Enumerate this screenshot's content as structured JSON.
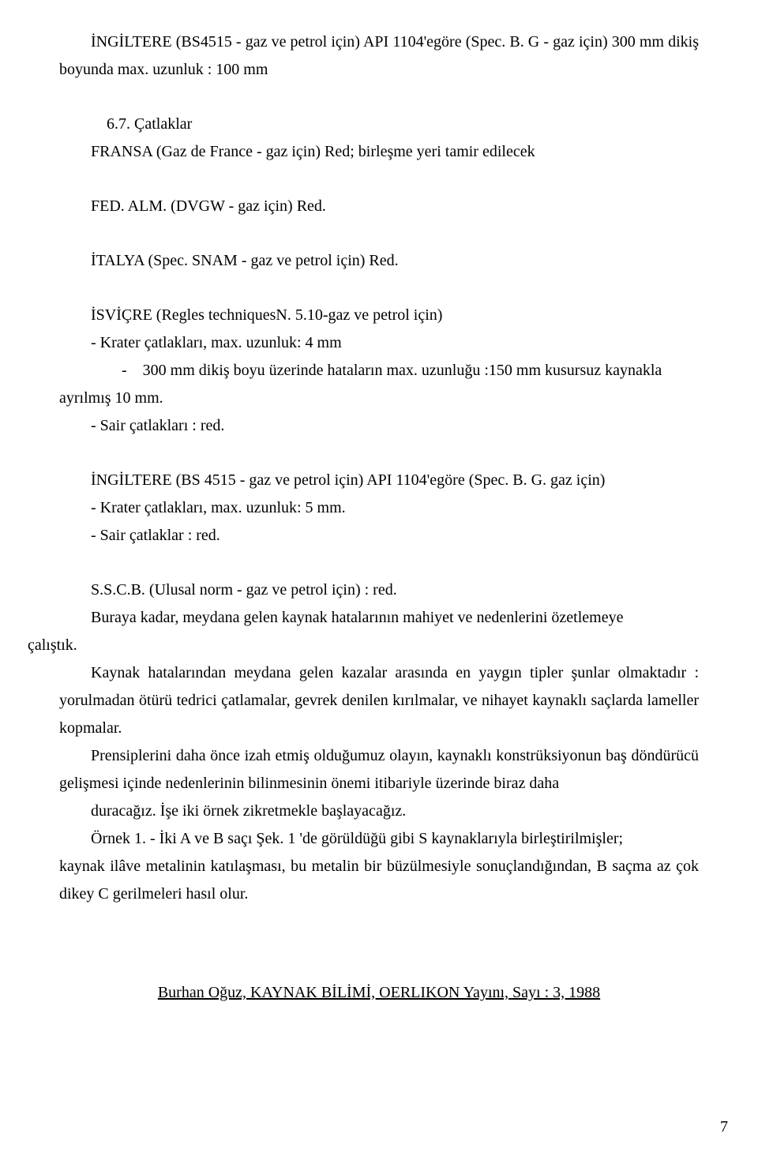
{
  "p1": "İNGİLTERE (BS4515 - gaz ve petrol için) API 1104'egöre (Spec. B. G - gaz için) 300 mm dikiş boyunda max. uzunluk : 100 mm",
  "p2": "6.7. Çatlaklar",
  "p3": "FRANSA (Gaz de France - gaz için) Red; birleşme   yeri   tamir edilecek",
  "p4": "FED. ALM. (DVGW - gaz için) Red.",
  "p5": "İTALYA     (Spec. SNAM - gaz ve petrol için) Red.",
  "p6": "İSVİÇRE     (Regles techniquesN. 5.10-gaz ve petrol için)",
  "p6a": "-  Krater  çatlakları,   max. uzunluk: 4 mm",
  "p6b": "-    300 mm dikiş boyu üzerinde hataların max. uzunluğu :150 mm kusursuz kaynakla ayrılmış 10 mm.",
  "p6c": "-  Sair çatlakları : red.",
  "p7": "İNGİLTERE (BS 4515 - gaz ve petrol için) API 1104'egöre (Spec. B. G. gaz için)",
  "p7a": "-  Krater  çatlakları,   max. uzunluk: 5 mm.",
  "p7b": "-   Sair çatlaklar : red.",
  "p8": "S.S.C.B.   (Ulusal norm - gaz ve petrol için) : red.",
  "p9": "Buraya kadar, meydana gelen kaynak hatalarının mahiyet ve nedenlerini özetlemeye çalıştık.",
  "p10": "Kaynak hatalarından meydana gelen kazalar arasında en yaygın tipler şunlar olmaktadır : yorulmadan ötürü tedrici çatlamalar, gevrek denilen kırılmalar, ve nihayet kaynaklı saçlarda lameller kopmalar.",
  "p11": "Prensiplerini daha önce izah etmiş olduğumuz olayın, kaynaklı konstrüksiyonun baş döndürücü gelişmesi içinde nedenlerinin bilinmesinin önemi itibariyle    üzerinde  biraz  daha",
  "p12": "duracağız. İşe iki örnek zikretmekle başlayacağız.",
  "p13": "Örnek 1. - İki A ve B saçı Şek. 1 'de görüldüğü gibi S kaynaklarıyla birleştirilmişler; kaynak ilâve metalinin katılaşması, bu metalin bir büzülmesiyle sonuçlandığından, B saçma az çok dikey C gerilmeleri hasıl olur.",
  "footer": "Burhan Oğuz, KAYNAK BİLİMİ, OERLIKON Yayını, Sayı : 3, 1988",
  "pageNum": "7"
}
